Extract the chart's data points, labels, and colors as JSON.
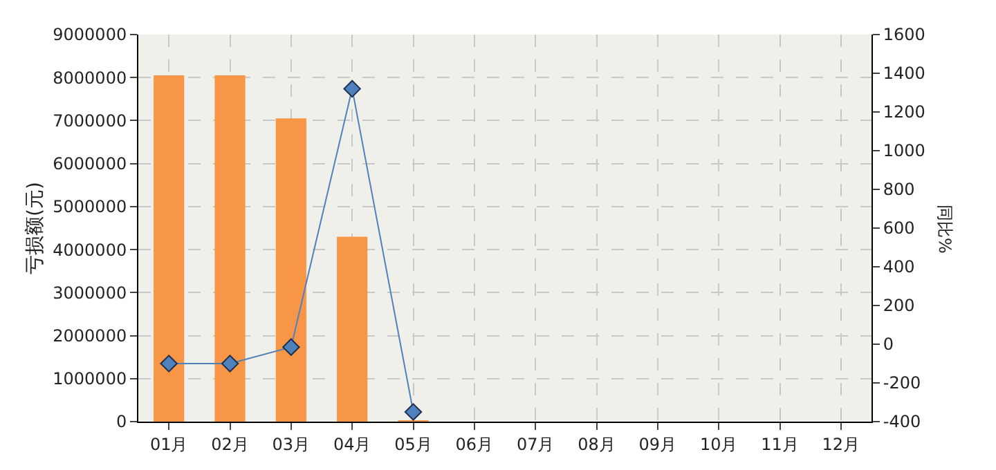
{
  "chart_data": {
    "type": "bar",
    "categories": [
      "01月",
      "02月",
      "03月",
      "04月",
      "05月",
      "06月",
      "07月",
      "08月",
      "09月",
      "10月",
      "11月",
      "12月"
    ],
    "ylabel": "亏损额(元)",
    "y2label": "同比%",
    "ylim": [
      0,
      9000000
    ],
    "yticks": [
      0,
      1000000,
      2000000,
      3000000,
      4000000,
      5000000,
      6000000,
      7000000,
      8000000,
      9000000
    ],
    "y2lim": [
      -400,
      1600
    ],
    "y2ticks": [
      -400,
      -200,
      0,
      200,
      400,
      600,
      800,
      1000,
      1200,
      1400,
      1600
    ],
    "grid": true,
    "series": [
      {
        "color": "#f79646",
        "values": [
          8050000,
          8050000,
          7050000,
          4300000,
          30000,
          null,
          null,
          null,
          null,
          null,
          null,
          null
        ]
      },
      {
        "type": "line",
        "axis": "y2",
        "color": "#4f81bd",
        "marker": "diamond",
        "values": [
          -100,
          -100,
          -15,
          1320,
          -350,
          null,
          null,
          null,
          null,
          null,
          null,
          null
        ]
      }
    ]
  }
}
